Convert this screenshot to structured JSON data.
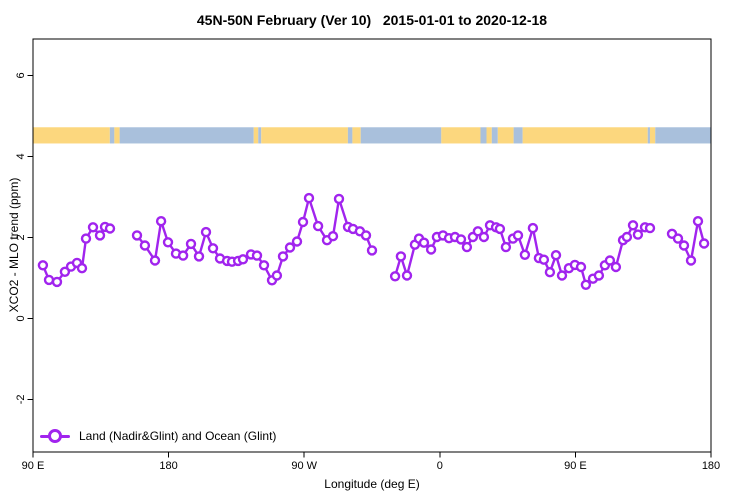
{
  "title": "45N-50N February (Ver 10)   2015-01-01 to 2020-12-18",
  "legend": {
    "label": "Land (Nadir&Glint) and Ocean (Glint)"
  },
  "colors": {
    "series": "#A124EE",
    "land": "#FCD77E",
    "ocean": "#A9C0DC",
    "axis": "#000000",
    "background": "#FFFFFF"
  },
  "chart_data": {
    "type": "line",
    "title": "45N-50N February (Ver 10)   2015-01-01 to 2020-12-18",
    "xlabel": "Longitude (deg E)",
    "ylabel": "XCO2 - MLO trend (ppm)",
    "xlim": [
      90,
      540
    ],
    "ylim": [
      -3.3,
      6.9
    ],
    "grid": false,
    "legend_position": "bottom-left-inside",
    "x_ticks": [
      {
        "value": 90,
        "label": "90 E"
      },
      {
        "value": 180,
        "label": "180"
      },
      {
        "value": 270,
        "label": "90 W"
      },
      {
        "value": 360,
        "label": "0"
      },
      {
        "value": 450,
        "label": "90 E"
      },
      {
        "value": 540,
        "label": "180"
      }
    ],
    "y_ticks": [
      {
        "value": -2,
        "label": "-2"
      },
      {
        "value": 0,
        "label": "0"
      },
      {
        "value": 2,
        "label": "2"
      },
      {
        "value": 4,
        "label": "4"
      },
      {
        "value": 6,
        "label": "6"
      }
    ],
    "land_ocean_band": {
      "y0": 4.32,
      "y1": 4.72,
      "segments": [
        {
          "from": 90,
          "to": 141,
          "type": "land"
        },
        {
          "from": 141,
          "to": 144,
          "type": "ocean"
        },
        {
          "from": 144,
          "to": 147.5,
          "type": "land"
        },
        {
          "from": 147.5,
          "to": 236.5,
          "type": "ocean"
        },
        {
          "from": 236.5,
          "to": 239.5,
          "type": "land"
        },
        {
          "from": 239.5,
          "to": 241.5,
          "type": "ocean"
        },
        {
          "from": 241.5,
          "to": 299,
          "type": "land"
        },
        {
          "from": 299,
          "to": 302,
          "type": "ocean"
        },
        {
          "from": 302,
          "to": 307.5,
          "type": "land"
        },
        {
          "from": 307.5,
          "to": 361,
          "type": "ocean"
        },
        {
          "from": 361,
          "to": 387,
          "type": "land"
        },
        {
          "from": 387,
          "to": 391,
          "type": "ocean"
        },
        {
          "from": 391,
          "to": 394.5,
          "type": "land"
        },
        {
          "from": 394.5,
          "to": 398.5,
          "type": "ocean"
        },
        {
          "from": 398.5,
          "to": 409,
          "type": "land"
        },
        {
          "from": 409,
          "to": 415,
          "type": "ocean"
        },
        {
          "from": 415,
          "to": 498,
          "type": "land"
        },
        {
          "from": 498,
          "to": 499.5,
          "type": "ocean"
        },
        {
          "from": 499.5,
          "to": 503,
          "type": "land"
        },
        {
          "from": 503,
          "to": 540,
          "type": "ocean"
        }
      ]
    },
    "series": [
      {
        "name": "Land (Nadir&Glint) and Ocean (Glint)",
        "marker": "open-circle",
        "segments": [
          [
            [
              96.6,
              1.31
            ],
            [
              100.6,
              0.95
            ],
            [
              105.9,
              0.9
            ],
            [
              111.2,
              1.15
            ],
            [
              115.2,
              1.28
            ],
            [
              119.2,
              1.37
            ],
            [
              122.5,
              1.24
            ],
            [
              125.2,
              1.97
            ],
            [
              129.8,
              2.25
            ],
            [
              134.5,
              2.05
            ],
            [
              137.8,
              2.26
            ],
            [
              141.1,
              2.22
            ]
          ],
          [
            [
              159.0,
              2.05
            ],
            [
              164.3,
              1.8
            ],
            [
              171.0,
              1.43
            ],
            [
              175.0,
              2.4
            ],
            [
              179.6,
              1.88
            ],
            [
              184.9,
              1.6
            ],
            [
              189.6,
              1.55
            ],
            [
              194.9,
              1.84
            ],
            [
              200.2,
              1.53
            ],
            [
              204.8,
              2.13
            ],
            [
              209.5,
              1.73
            ],
            [
              214.1,
              1.48
            ],
            [
              218.8,
              1.42
            ],
            [
              222.1,
              1.4
            ],
            [
              226.1,
              1.42
            ],
            [
              229.4,
              1.46
            ],
            [
              234.7,
              1.58
            ],
            [
              238.7,
              1.55
            ],
            [
              243.3,
              1.31
            ],
            [
              248.6,
              0.94
            ],
            [
              251.9,
              1.06
            ],
            [
              255.9,
              1.53
            ],
            [
              260.6,
              1.75
            ],
            [
              265.2,
              1.9
            ],
            [
              269.2,
              2.38
            ],
            [
              273.2,
              2.97
            ],
            [
              279.2,
              2.28
            ],
            [
              285.1,
              1.93
            ],
            [
              289.1,
              2.03
            ],
            [
              293.1,
              2.95
            ],
            [
              299.1,
              2.26
            ],
            [
              302.4,
              2.21
            ],
            [
              307.0,
              2.15
            ],
            [
              311.0,
              2.05
            ],
            [
              315.0,
              1.68
            ]
          ],
          [
            [
              330.3,
              1.04
            ],
            [
              334.2,
              1.53
            ],
            [
              338.2,
              1.06
            ],
            [
              343.5,
              1.82
            ],
            [
              346.2,
              1.97
            ],
            [
              349.5,
              1.87
            ],
            [
              354.2,
              1.7
            ],
            [
              358.1,
              2.01
            ],
            [
              362.1,
              2.05
            ],
            [
              366.1,
              1.98
            ],
            [
              370.1,
              2.01
            ],
            [
              374.1,
              1.95
            ],
            [
              378.0,
              1.76
            ],
            [
              382.0,
              2.01
            ],
            [
              385.3,
              2.15
            ],
            [
              389.3,
              2.01
            ],
            [
              393.3,
              2.3
            ],
            [
              397.3,
              2.25
            ],
            [
              399.9,
              2.21
            ],
            [
              403.9,
              1.76
            ],
            [
              408.6,
              1.97
            ],
            [
              411.9,
              2.05
            ],
            [
              416.5,
              1.57
            ],
            [
              421.8,
              2.23
            ],
            [
              425.8,
              1.49
            ],
            [
              429.1,
              1.45
            ],
            [
              433.1,
              1.14
            ],
            [
              437.1,
              1.56
            ],
            [
              441.1,
              1.06
            ],
            [
              445.7,
              1.24
            ],
            [
              449.7,
              1.32
            ],
            [
              453.7,
              1.27
            ],
            [
              457.0,
              0.83
            ],
            [
              461.7,
              0.98
            ],
            [
              465.6,
              1.06
            ],
            [
              469.6,
              1.31
            ],
            [
              472.9,
              1.43
            ],
            [
              476.9,
              1.27
            ],
            [
              481.6,
              1.93
            ],
            [
              484.2,
              2.01
            ],
            [
              488.2,
              2.3
            ],
            [
              491.5,
              2.07
            ],
            [
              496.2,
              2.25
            ],
            [
              499.5,
              2.23
            ]
          ],
          [
            [
              514.1,
              2.09
            ],
            [
              518.1,
              1.97
            ],
            [
              522.1,
              1.8
            ],
            [
              526.7,
              1.43
            ],
            [
              531.4,
              2.4
            ],
            [
              535.4,
              1.85
            ]
          ]
        ]
      }
    ]
  }
}
